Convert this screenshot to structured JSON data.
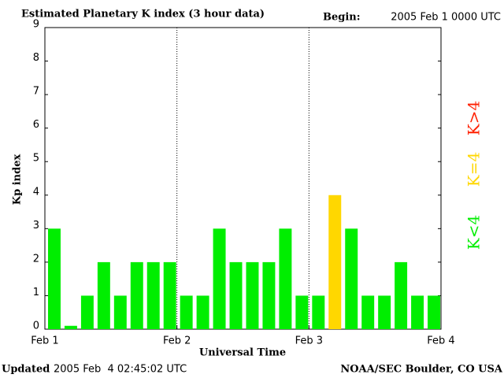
{
  "chart_data": {
    "type": "bar",
    "title": "Estimated Planetary K index (3 hour data)",
    "begin_label": "Begin:",
    "begin": "2005 Feb 1 0000 UTC",
    "y_label": "Kp index",
    "x_label": "Universal Time",
    "updated_label": "Updated",
    "updated": "2005 Feb  4 02:45:02 UTC",
    "source": "NOAA/SEC Boulder, CO USA",
    "x": [
      0,
      0.125,
      0.25,
      0.375,
      0.5,
      0.625,
      0.75,
      0.875,
      1,
      1.125,
      1.25,
      1.375,
      1.5,
      1.625,
      1.75,
      1.875,
      2,
      2.125,
      2.25,
      2.375,
      2.5,
      2.625,
      2.75,
      2.875
    ],
    "values": [
      3,
      0.1,
      1,
      2,
      1,
      2,
      2,
      2,
      1,
      1,
      3,
      2,
      2,
      2,
      3,
      1,
      1,
      4,
      3,
      1,
      1,
      2,
      1,
      1
    ],
    "colors": [
      "#00ee00",
      "#00ee00",
      "#00ee00",
      "#00ee00",
      "#00ee00",
      "#00ee00",
      "#00ee00",
      "#00ee00",
      "#00ee00",
      "#00ee00",
      "#00ee00",
      "#00ee00",
      "#00ee00",
      "#00ee00",
      "#00ee00",
      "#00ee00",
      "#00ee00",
      "#ffd700",
      "#00ee00",
      "#00ee00",
      "#00ee00",
      "#00ee00",
      "#00ee00",
      "#00ee00"
    ],
    "legend": [
      {
        "name": "K<4",
        "color": "#00ee00"
      },
      {
        "name": "K=4",
        "color": "#ffd700"
      },
      {
        "name": "K>4",
        "color": "#ff2000"
      }
    ],
    "xlim": [
      0,
      3
    ],
    "xticks": [
      {
        "value": 0,
        "label": "Feb 1"
      },
      {
        "value": 1,
        "label": "Feb 2"
      },
      {
        "value": 2,
        "label": "Feb 3"
      },
      {
        "value": 3,
        "label": "Feb 4"
      }
    ],
    "ylim": [
      0,
      9
    ],
    "yticks": [
      0,
      1,
      2,
      3,
      4,
      5,
      6,
      7,
      8,
      9
    ]
  }
}
